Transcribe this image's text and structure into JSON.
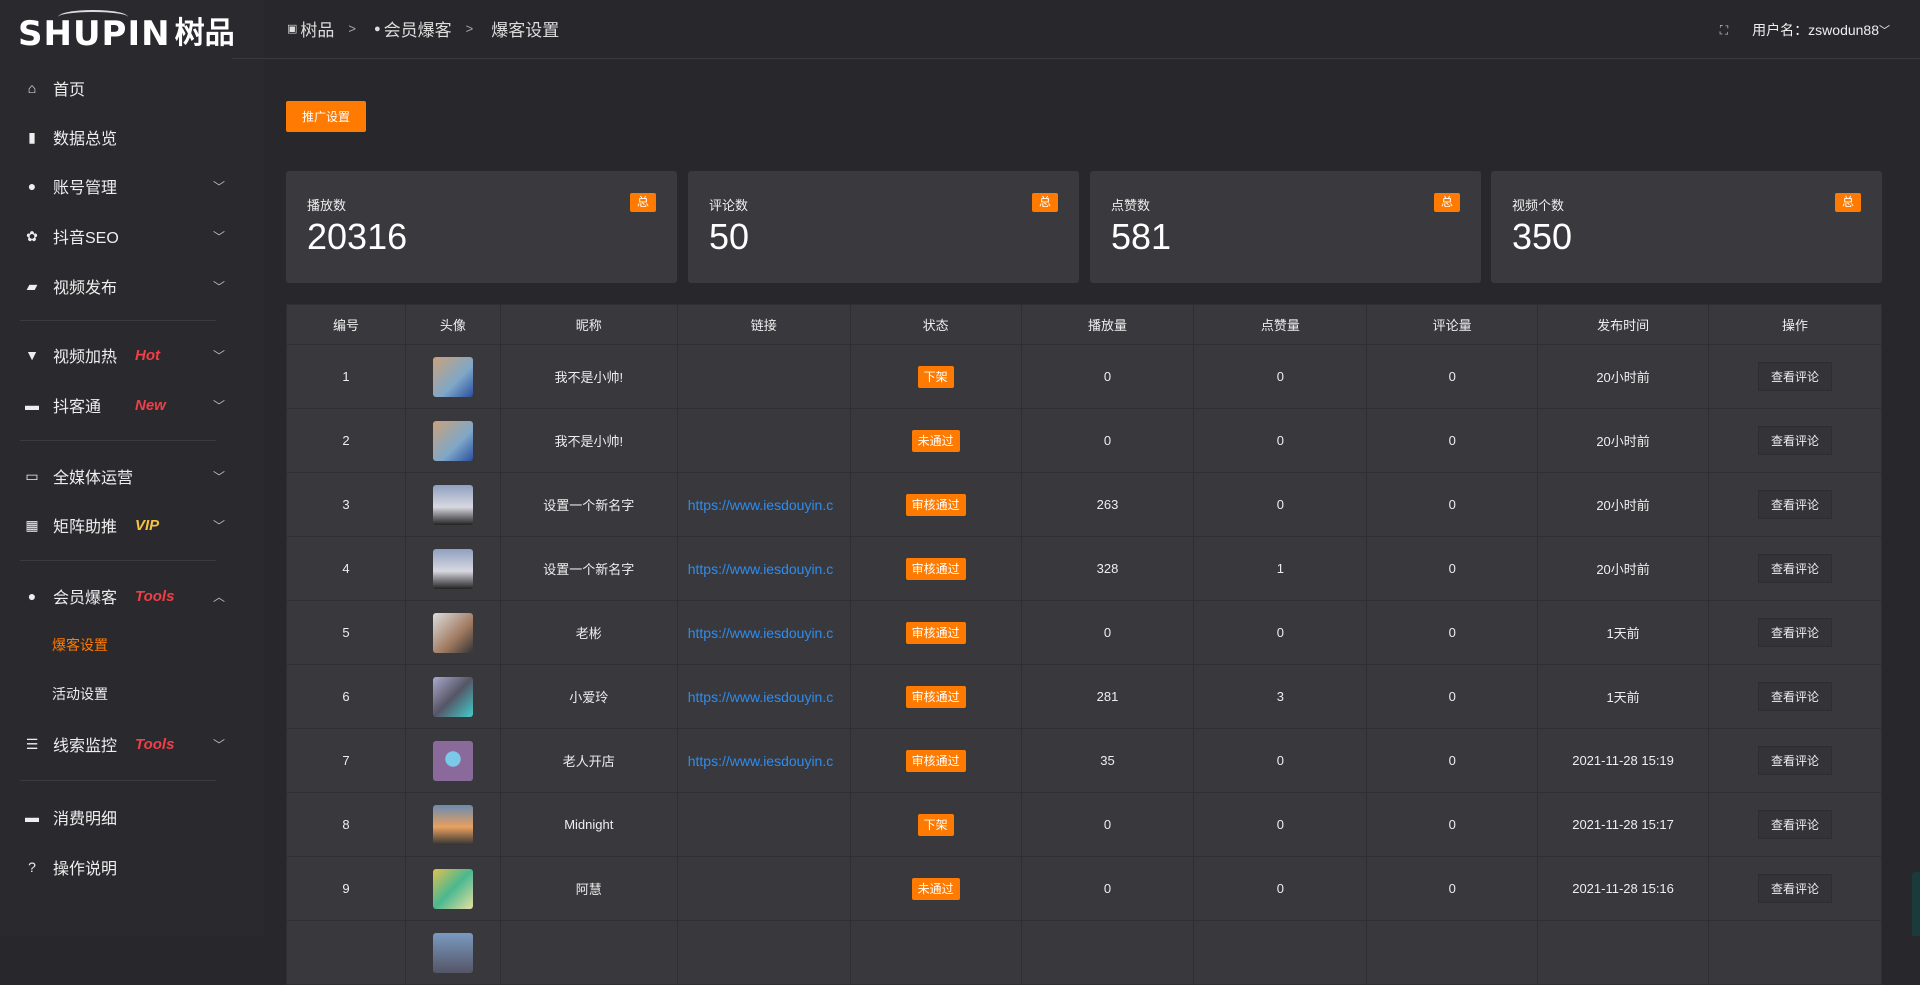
{
  "logo": {
    "en": "SHUPIN",
    "cn": "树品"
  },
  "sidebar": {
    "items": [
      {
        "label": "首页",
        "icon": "home-icon",
        "glyph": "⌂"
      },
      {
        "label": "数据总览",
        "icon": "bar-chart-icon",
        "glyph": "▮"
      },
      {
        "label": "账号管理",
        "icon": "user-icon",
        "glyph": "●",
        "chevron": "﹀"
      },
      {
        "label": "抖音SEO",
        "icon": "gear-icon",
        "glyph": "✿",
        "chevron": "﹀"
      },
      {
        "label": "视频发布",
        "icon": "camera-icon",
        "glyph": "▰",
        "chevron": "﹀"
      },
      {
        "label": "视频加热",
        "icon": "sign-icon",
        "glyph": "▼",
        "badge": "Hot",
        "chevron": "﹀"
      },
      {
        "label": "抖客通",
        "icon": "message-icon",
        "glyph": "▬",
        "badge": "New",
        "chevron": "﹀"
      },
      {
        "label": "全媒体运营",
        "icon": "monitor-icon",
        "glyph": "▭",
        "chevron": "﹀"
      },
      {
        "label": "矩阵助推",
        "icon": "grid-icon",
        "glyph": "▦",
        "badge": "VIP",
        "chevron": "﹀"
      },
      {
        "label": "会员爆客",
        "icon": "user-icon",
        "glyph": "●",
        "badge": "Tools",
        "chevron": "︿"
      },
      {
        "label": "爆客设置",
        "sub": true,
        "active": true
      },
      {
        "label": "活动设置",
        "sub": true
      },
      {
        "label": "线索监控",
        "icon": "sliders-icon",
        "glyph": "☰",
        "badge": "Tools",
        "chevron": "﹀"
      },
      {
        "label": "消费明细",
        "icon": "wallet-icon",
        "glyph": "▬"
      },
      {
        "label": "操作说明",
        "icon": "help-icon",
        "glyph": "?"
      }
    ]
  },
  "header": {
    "breadcrumb": [
      "树品",
      "会员爆客",
      "爆客设置"
    ],
    "separator": ">",
    "username": "用户名：zswodun88",
    "chevron": "﹀"
  },
  "toolbar": {
    "promo_label": "推广设置"
  },
  "stats": [
    {
      "title": "播放数",
      "value": "20316",
      "tag": "总"
    },
    {
      "title": "评论数",
      "value": "50",
      "tag": "总"
    },
    {
      "title": "点赞数",
      "value": "581",
      "tag": "总"
    },
    {
      "title": "视频个数",
      "value": "350",
      "tag": "总"
    }
  ],
  "table": {
    "columns": [
      "编号",
      "头像",
      "昵称",
      "链接",
      "状态",
      "播放量",
      "点赞量",
      "评论量",
      "发布时间",
      "操作"
    ],
    "action_label": "查看评论",
    "rows": [
      {
        "id": "1",
        "nick": "我不是小帅!",
        "link": "",
        "status": "下架",
        "plays": "0",
        "likes": "0",
        "comments": "0",
        "time": "20小时前"
      },
      {
        "id": "2",
        "nick": "我不是小帅!",
        "link": "",
        "status": "未通过",
        "plays": "0",
        "likes": "0",
        "comments": "0",
        "time": "20小时前"
      },
      {
        "id": "3",
        "nick": "设置一个新名字",
        "link": "https://www.iesdouyin.c",
        "status": "审核通过",
        "plays": "263",
        "likes": "0",
        "comments": "0",
        "time": "20小时前"
      },
      {
        "id": "4",
        "nick": "设置一个新名字",
        "link": "https://www.iesdouyin.c",
        "status": "审核通过",
        "plays": "328",
        "likes": "1",
        "comments": "0",
        "time": "20小时前"
      },
      {
        "id": "5",
        "nick": "老彬",
        "link": "https://www.iesdouyin.c",
        "status": "审核通过",
        "plays": "0",
        "likes": "0",
        "comments": "0",
        "time": "1天前"
      },
      {
        "id": "6",
        "nick": "小爱玲",
        "link": "https://www.iesdouyin.c",
        "status": "审核通过",
        "plays": "281",
        "likes": "3",
        "comments": "0",
        "time": "1天前"
      },
      {
        "id": "7",
        "nick": "老人开店",
        "link": "https://www.iesdouyin.c",
        "status": "审核通过",
        "plays": "35",
        "likes": "0",
        "comments": "0",
        "time": "2021-11-28 15:19"
      },
      {
        "id": "8",
        "nick": "Midnight",
        "link": "",
        "status": "下架",
        "plays": "0",
        "likes": "0",
        "comments": "0",
        "time": "2021-11-28 15:17"
      },
      {
        "id": "9",
        "nick": "阿慧",
        "link": "",
        "status": "未通过",
        "plays": "0",
        "likes": "0",
        "comments": "0",
        "time": "2021-11-28 15:16"
      },
      {
        "id": "",
        "nick": "",
        "link": "",
        "status": "",
        "plays": "",
        "likes": "",
        "comments": "",
        "time": ""
      }
    ]
  },
  "colors": {
    "accent": "#ff7a00",
    "link": "#2d8cf0",
    "badge_red": "#ef3f47",
    "badge_vip": "#f5c242"
  }
}
